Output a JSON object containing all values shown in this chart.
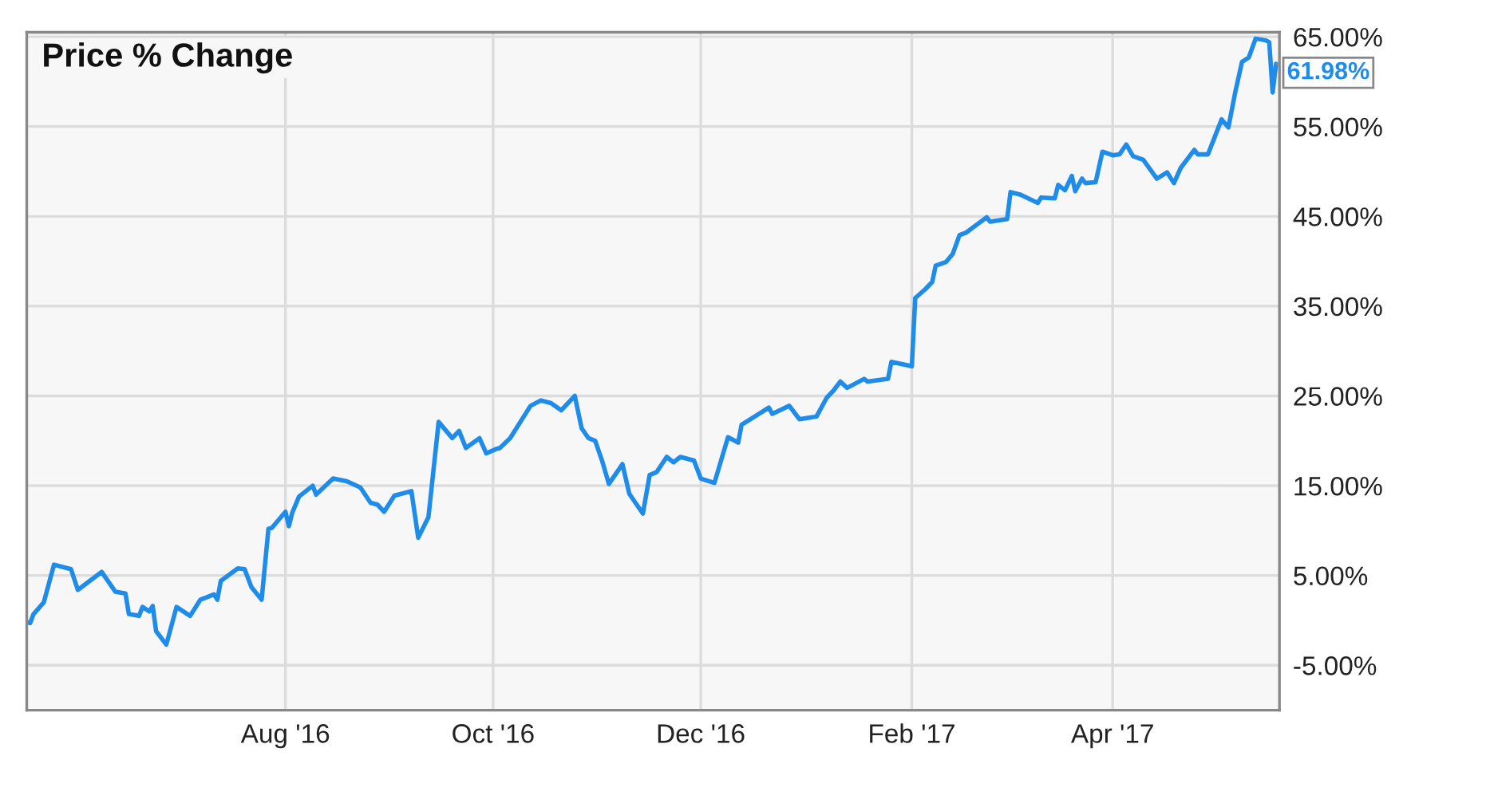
{
  "chart_data": {
    "type": "line",
    "title": "Price % Change",
    "x": [
      "2016-05-17",
      "2016-05-18",
      "2016-05-19",
      "2016-05-22",
      "2016-05-25",
      "2016-05-30",
      "2016-06-01",
      "2016-06-08",
      "2016-06-12",
      "2016-06-15",
      "2016-06-16",
      "2016-06-19",
      "2016-06-20",
      "2016-06-22",
      "2016-06-23",
      "2016-06-24",
      "2016-06-27",
      "2016-06-30",
      "2016-07-04",
      "2016-07-07",
      "2016-07-11",
      "2016-07-12",
      "2016-07-13",
      "2016-07-18",
      "2016-07-20",
      "2016-07-22",
      "2016-07-25",
      "2016-07-27",
      "2016-07-28",
      "2016-08-01",
      "2016-08-02",
      "2016-08-03",
      "2016-08-05",
      "2016-08-09",
      "2016-08-10",
      "2016-08-15",
      "2016-08-19",
      "2016-08-23",
      "2016-08-26",
      "2016-08-28",
      "2016-08-30",
      "2016-09-02",
      "2016-09-07",
      "2016-09-09",
      "2016-09-12",
      "2016-09-15",
      "2016-09-19",
      "2016-09-21",
      "2016-09-23",
      "2016-09-27",
      "2016-09-29",
      "2016-10-02",
      "2016-10-03",
      "2016-10-06",
      "2016-10-12",
      "2016-10-15",
      "2016-10-18",
      "2016-10-21",
      "2016-10-25",
      "2016-10-27",
      "2016-10-29",
      "2016-10-31",
      "2016-11-02",
      "2016-11-04",
      "2016-11-08",
      "2016-11-10",
      "2016-11-14",
      "2016-11-16",
      "2016-11-18",
      "2016-11-21",
      "2016-11-23",
      "2016-11-25",
      "2016-11-29",
      "2016-12-01",
      "2016-12-05",
      "2016-12-09",
      "2016-12-12",
      "2016-12-13",
      "2016-12-16",
      "2016-12-21",
      "2016-12-22",
      "2016-12-27",
      "2016-12-30",
      "2017-01-04",
      "2017-01-07",
      "2017-01-09",
      "2017-01-11",
      "2017-01-13",
      "2017-01-18",
      "2017-01-19",
      "2017-01-25",
      "2017-01-26",
      "2017-02-01",
      "2017-02-02",
      "2017-02-05",
      "2017-02-07",
      "2017-02-08",
      "2017-02-11",
      "2017-02-13",
      "2017-02-15",
      "2017-02-17",
      "2017-02-23",
      "2017-02-24",
      "2017-03-01",
      "2017-03-02",
      "2017-03-05",
      "2017-03-10",
      "2017-03-11",
      "2017-03-15",
      "2017-03-16",
      "2017-03-18",
      "2017-03-20",
      "2017-03-21",
      "2017-03-23",
      "2017-03-24",
      "2017-03-27",
      "2017-03-29",
      "2017-04-01",
      "2017-04-03",
      "2017-04-05",
      "2017-04-07",
      "2017-04-10",
      "2017-04-14",
      "2017-04-17",
      "2017-04-19",
      "2017-04-21",
      "2017-04-25",
      "2017-04-26",
      "2017-04-29",
      "2017-05-03",
      "2017-05-05",
      "2017-05-07",
      "2017-05-09",
      "2017-05-11",
      "2017-05-13",
      "2017-05-16",
      "2017-05-17",
      "2017-05-18",
      "2017-05-19"
    ],
    "series": [
      {
        "color": "#1e8ce8",
        "values": [
          -0.2,
          -0.3,
          0.7,
          2.0,
          6.2,
          5.7,
          3.4,
          5.4,
          3.2,
          3.0,
          0.7,
          0.5,
          1.5,
          1.0,
          1.6,
          -1.2,
          -2.7,
          1.5,
          0.5,
          2.3,
          2.9,
          2.3,
          4.4,
          5.8,
          5.7,
          3.7,
          2.3,
          10.2,
          10.3,
          12.1,
          10.5,
          12.0,
          13.8,
          15.0,
          14.0,
          15.8,
          15.5,
          14.8,
          13.1,
          12.9,
          12.1,
          13.9,
          14.4,
          9.2,
          11.5,
          22.1,
          20.3,
          21.1,
          19.2,
          20.3,
          18.6,
          19.1,
          19.2,
          20.3,
          23.9,
          24.5,
          24.2,
          23.4,
          25.0,
          21.4,
          20.3,
          20.0,
          17.8,
          15.2,
          17.4,
          14.1,
          11.9,
          16.2,
          16.5,
          18.2,
          17.6,
          18.2,
          17.8,
          15.8,
          15.3,
          20.4,
          19.8,
          21.8,
          22.5,
          23.7,
          23.0,
          23.9,
          22.4,
          22.7,
          24.8,
          25.6,
          26.6,
          25.9,
          26.9,
          26.6,
          26.9,
          28.8,
          28.3,
          35.9,
          36.9,
          37.7,
          39.5,
          39.9,
          40.8,
          42.9,
          43.2,
          44.9,
          44.4,
          44.7,
          47.7,
          47.4,
          46.5,
          47.1,
          47.0,
          48.5,
          47.9,
          49.5,
          47.8,
          49.2,
          48.7,
          48.8,
          52.2,
          51.8,
          51.9,
          53.0,
          51.7,
          51.3,
          49.2,
          49.9,
          48.7,
          50.4,
          52.4,
          51.9,
          51.9,
          55.8,
          54.9,
          58.8,
          62.2,
          62.7,
          64.8,
          64.6,
          64.4,
          58.8,
          61.98
        ]
      }
    ],
    "annotations": [
      {
        "text": "61.98%",
        "x": "2017-05-19",
        "y": 61.98
      }
    ],
    "xlim": [
      "2016-05-17",
      "2017-05-20"
    ],
    "xticks": [
      {
        "value": "2016-08-01",
        "label": "Aug '16"
      },
      {
        "value": "2016-10-01",
        "label": "Oct '16"
      },
      {
        "value": "2016-12-01",
        "label": "Dec '16"
      },
      {
        "value": "2017-02-01",
        "label": "Feb '17"
      },
      {
        "value": "2017-04-01",
        "label": "Apr '17"
      }
    ],
    "ylim": [
      -10,
      65.5
    ],
    "yticks": [
      {
        "value": -5,
        "label": "-5.00%"
      },
      {
        "value": 5,
        "label": "5.00%"
      },
      {
        "value": 15,
        "label": "15.00%"
      },
      {
        "value": 25,
        "label": "25.00%"
      },
      {
        "value": 35,
        "label": "35.00%"
      },
      {
        "value": 45,
        "label": "45.00%"
      },
      {
        "value": 55,
        "label": "55.00%"
      },
      {
        "value": 65,
        "label": "65.00%"
      }
    ],
    "grid": true,
    "legend": false,
    "line_style": "solid",
    "marker": "none"
  }
}
